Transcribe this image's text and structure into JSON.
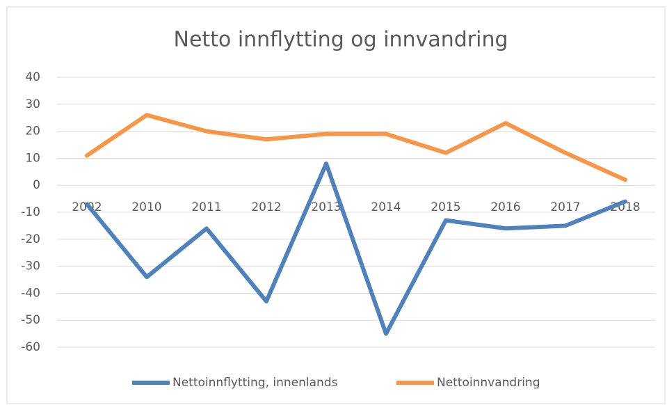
{
  "chart_data": {
    "type": "line",
    "title": "Netto innflytting og innvandring",
    "categories": [
      "2002",
      "2010",
      "2011",
      "2012",
      "2013",
      "2014",
      "2015",
      "2016",
      "2017",
      "2018"
    ],
    "series": [
      {
        "name": "Nettoinnflytting, innenlands",
        "color": "#4f81bd",
        "values": [
          -7,
          -34,
          -16,
          -43,
          8,
          -55,
          -13,
          -16,
          -15,
          -6
        ]
      },
      {
        "name": "Nettoinnvandring",
        "color": "#f79646",
        "values": [
          11,
          26,
          20,
          17,
          19,
          19,
          12,
          23,
          12,
          2
        ]
      }
    ],
    "ylim": [
      -60,
      40
    ],
    "yticks": [
      -60,
      -50,
      -40,
      -30,
      -20,
      -10,
      0,
      10,
      20,
      30,
      40
    ],
    "grid": true,
    "legend": "bottom"
  }
}
